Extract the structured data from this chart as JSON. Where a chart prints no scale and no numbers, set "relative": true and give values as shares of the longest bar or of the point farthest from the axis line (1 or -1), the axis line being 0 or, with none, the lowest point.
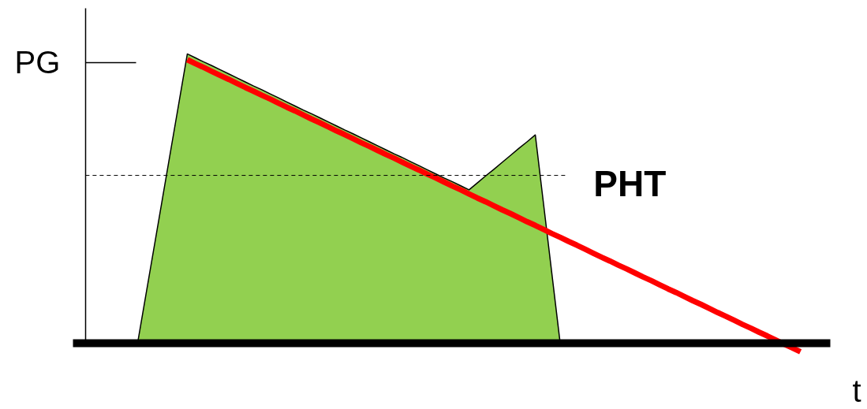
{
  "chart_data": {
    "type": "area",
    "relative": true,
    "xlabel": "t",
    "categories": [
      null,
      null,
      null,
      null,
      null,
      null,
      null,
      null,
      null,
      null,
      null,
      null,
      null,
      null,
      null,
      null,
      null,
      null,
      null,
      null,
      null,
      null,
      null,
      null,
      null,
      null,
      null,
      null,
      null,
      null,
      null,
      null,
      null,
      null,
      null,
      null,
      null,
      null,
      null,
      null,
      null,
      null,
      null,
      null,
      null,
      null,
      null,
      null,
      null,
      null,
      null,
      null,
      null,
      null,
      null,
      null,
      null,
      null,
      null,
      null,
      null,
      null,
      null,
      null,
      null,
      null,
      null,
      null,
      null,
      null,
      null,
      null,
      null,
      null,
      null,
      null,
      null,
      null,
      null,
      null,
      null
    ],
    "series": [
      {
        "color": "#92d050",
        "values": [
          0,
          0.167,
          0.333,
          0.5,
          0.667,
          0.833,
          1,
          0.986,
          0.972,
          0.959,
          0.945,
          0.931,
          0.917,
          0.903,
          0.889,
          0.876,
          0.862,
          0.848,
          0.834,
          0.82,
          0.806,
          0.793,
          0.779,
          0.765,
          0.751,
          0.737,
          0.724,
          0.71,
          0.696,
          0.682,
          0.668,
          0.654,
          0.641,
          0.627,
          0.613,
          0.599,
          0.585,
          0.571,
          0.558,
          0.544,
          0.53,
          0.554,
          0.578,
          0.601,
          0.625,
          0.649,
          0.673,
          0.696,
          0.72,
          0.48,
          0.24,
          0,
          null,
          null,
          null,
          null,
          null,
          null,
          null,
          null,
          null,
          null,
          null,
          null,
          null,
          null,
          null,
          null,
          null,
          null,
          null,
          null,
          null,
          null,
          null,
          null,
          null,
          null,
          null,
          null,
          null
        ]
      },
      {
        "type": "line",
        "color": "#ff0000",
        "values": [
          null,
          null,
          null,
          null,
          null,
          null,
          0.98,
          0.966,
          0.953,
          0.939,
          0.925,
          0.912,
          0.898,
          0.884,
          0.871,
          0.857,
          0.844,
          0.83,
          0.816,
          0.803,
          0.789,
          0.775,
          0.762,
          0.748,
          0.734,
          0.721,
          0.707,
          0.693,
          0.68,
          0.666,
          0.652,
          0.639,
          0.625,
          0.611,
          0.598,
          0.584,
          0.571,
          0.557,
          0.543,
          0.53,
          0.516,
          0.502,
          0.489,
          0.475,
          0.461,
          0.448,
          0.434,
          0.42,
          0.407,
          0.393,
          0.379,
          0.366,
          0.352,
          0.339,
          0.325,
          0.311,
          0.297,
          0.284,
          0.27,
          0.257,
          0.243,
          0.229,
          0.216,
          0.202,
          0.188,
          0.175,
          0.161,
          0.147,
          0.134,
          0.12,
          0.106,
          0.093,
          0.079,
          0.065,
          0.052,
          0.038,
          0.025,
          0.011,
          -0.003,
          -0.016,
          -0.03
        ]
      }
    ],
    "ref_lines": [
      {
        "axis": "y",
        "value": 0.97,
        "label": "PG",
        "line_style": "solid"
      },
      {
        "axis": "y",
        "value": 0.58,
        "label": "PHT",
        "line_style": "dashed"
      }
    ]
  }
}
